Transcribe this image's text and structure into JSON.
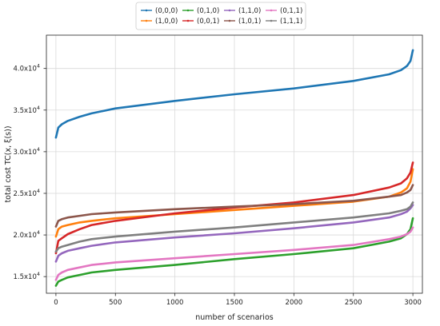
{
  "chart_data": {
    "type": "line",
    "xlabel": "number of scenarios",
    "ylabel": "total cost TC(x, ξ(s))",
    "xlim": [
      -80,
      3080
    ],
    "ylim": [
      13000,
      44000
    ],
    "xticks": [
      0,
      500,
      1000,
      1500,
      2000,
      2500,
      3000
    ],
    "xtick_labels": [
      "0",
      "500",
      "1000",
      "1500",
      "2000",
      "2500",
      "3000"
    ],
    "yticks": [
      15000,
      20000,
      25000,
      30000,
      35000,
      40000
    ],
    "ytick_labels": [
      "1.5x10",
      "2.0x10",
      "2.5x10",
      "3.0x10",
      "3.5x10",
      "4.0x10"
    ],
    "ytick_exponent": "4",
    "grid": true,
    "legend_position": "top-center",
    "x": [
      0,
      20,
      50,
      100,
      200,
      300,
      500,
      1000,
      1500,
      2000,
      2500,
      2800,
      2900,
      2950,
      2980,
      3000
    ],
    "series": [
      {
        "name": "(0,0,0)",
        "color": "#1f77b4",
        "values": [
          31700,
          32900,
          33300,
          33700,
          34200,
          34600,
          35200,
          36100,
          36900,
          37600,
          38500,
          39300,
          39800,
          40300,
          40900,
          42200
        ]
      },
      {
        "name": "(1,0,0)",
        "color": "#ff7f0e",
        "values": [
          19800,
          20700,
          21000,
          21200,
          21500,
          21700,
          22000,
          22500,
          23000,
          23500,
          24000,
          24600,
          25100,
          25600,
          26400,
          27900
        ]
      },
      {
        "name": "(0,1,0)",
        "color": "#2ca02c",
        "values": [
          13900,
          14400,
          14600,
          14900,
          15200,
          15500,
          15800,
          16400,
          17100,
          17700,
          18400,
          19200,
          19600,
          20100,
          20700,
          22000
        ]
      },
      {
        "name": "(0,0,1)",
        "color": "#d62728",
        "values": [
          17800,
          19300,
          19600,
          20100,
          20700,
          21200,
          21700,
          22600,
          23300,
          23900,
          24800,
          25700,
          26200,
          26800,
          27500,
          28700
        ]
      },
      {
        "name": "(1,1,0)",
        "color": "#9467bd",
        "values": [
          16800,
          17500,
          17800,
          18100,
          18400,
          18700,
          19100,
          19700,
          20200,
          20800,
          21500,
          22100,
          22500,
          22800,
          23200,
          23600
        ]
      },
      {
        "name": "(1,0,1)",
        "color": "#8c564b",
        "values": [
          21000,
          21700,
          21900,
          22100,
          22300,
          22500,
          22700,
          23100,
          23400,
          23700,
          24100,
          24600,
          24800,
          25100,
          25400,
          26000
        ]
      },
      {
        "name": "(0,1,1)",
        "color": "#e377c2",
        "values": [
          14600,
          15200,
          15500,
          15800,
          16100,
          16400,
          16700,
          17200,
          17700,
          18200,
          18800,
          19500,
          19800,
          20100,
          20400,
          20900
        ]
      },
      {
        "name": "(1,1,1)",
        "color": "#7f7f7f",
        "values": [
          18000,
          18400,
          18600,
          18800,
          19200,
          19500,
          19800,
          20400,
          20900,
          21500,
          22100,
          22600,
          22900,
          23100,
          23400,
          23900
        ]
      }
    ]
  }
}
